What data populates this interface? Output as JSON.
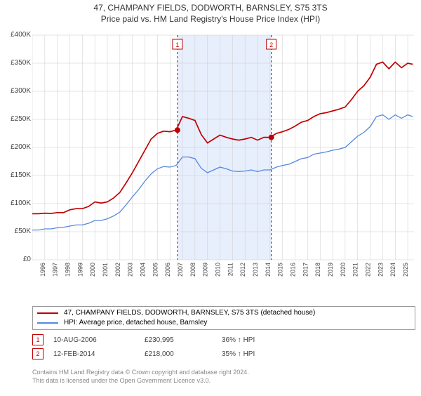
{
  "title": "47, CHAMPANY FIELDS, DODWORTH, BARNSLEY, S75 3TS",
  "subtitle": "Price paid vs. HM Land Registry's House Price Index (HPI)",
  "chart": {
    "type": "line",
    "background_color": "#ffffff",
    "grid_color": "#cccccc",
    "axis_color": "#666666",
    "xlim": [
      1995,
      2025.5
    ],
    "ylim": [
      0,
      400000
    ],
    "ytick_step": 50000,
    "ytick_labels": [
      "£0",
      "£50K",
      "£100K",
      "£150K",
      "£200K",
      "£250K",
      "£300K",
      "£350K",
      "£400K"
    ],
    "xtick_years": [
      1995,
      1996,
      1997,
      1998,
      1999,
      2000,
      2001,
      2002,
      2003,
      2004,
      2005,
      2006,
      2007,
      2008,
      2009,
      2010,
      2011,
      2012,
      2013,
      2014,
      2015,
      2016,
      2017,
      2018,
      2019,
      2020,
      2021,
      2022,
      2023,
      2024,
      2025
    ],
    "highlight_band": {
      "start": 2006.6,
      "end": 2014.1,
      "color": "#e7eefc"
    },
    "marker_lines": [
      {
        "x": 2006.6,
        "label": "1",
        "color": "#c00000"
      },
      {
        "x": 2014.1,
        "label": "2",
        "color": "#c00000"
      }
    ],
    "series": [
      {
        "name": "property",
        "color": "#c00000",
        "width": 1.7,
        "points": [
          [
            1995,
            82000
          ],
          [
            1995.5,
            82000
          ],
          [
            1996,
            83000
          ],
          [
            1996.5,
            82500
          ],
          [
            1997,
            84000
          ],
          [
            1997.5,
            84000
          ],
          [
            1998,
            89000
          ],
          [
            1998.5,
            91000
          ],
          [
            1999,
            91000
          ],
          [
            1999.5,
            95000
          ],
          [
            2000,
            103000
          ],
          [
            2000.5,
            101000
          ],
          [
            2001,
            103000
          ],
          [
            2001.5,
            110000
          ],
          [
            2002,
            120000
          ],
          [
            2002.5,
            137000
          ],
          [
            2003,
            155000
          ],
          [
            2003.5,
            175000
          ],
          [
            2004,
            195000
          ],
          [
            2004.5,
            215000
          ],
          [
            2005,
            225000
          ],
          [
            2005.5,
            229000
          ],
          [
            2006,
            228000
          ],
          [
            2006.5,
            231000
          ],
          [
            2007,
            255000
          ],
          [
            2007.5,
            252000
          ],
          [
            2008,
            248000
          ],
          [
            2008.5,
            223000
          ],
          [
            2009,
            208000
          ],
          [
            2009.5,
            215000
          ],
          [
            2010,
            222000
          ],
          [
            2010.5,
            218000
          ],
          [
            2011,
            215000
          ],
          [
            2011.5,
            213000
          ],
          [
            2012,
            215000
          ],
          [
            2012.5,
            218000
          ],
          [
            2013,
            213000
          ],
          [
            2013.5,
            218000
          ],
          [
            2014,
            218000
          ],
          [
            2014.5,
            225000
          ],
          [
            2015,
            228000
          ],
          [
            2015.5,
            232000
          ],
          [
            2016,
            238000
          ],
          [
            2016.5,
            245000
          ],
          [
            2017,
            248000
          ],
          [
            2017.5,
            255000
          ],
          [
            2018,
            260000
          ],
          [
            2018.5,
            262000
          ],
          [
            2019,
            265000
          ],
          [
            2019.5,
            268000
          ],
          [
            2020,
            272000
          ],
          [
            2020.5,
            285000
          ],
          [
            2021,
            300000
          ],
          [
            2021.5,
            310000
          ],
          [
            2022,
            325000
          ],
          [
            2022.5,
            348000
          ],
          [
            2023,
            352000
          ],
          [
            2023.5,
            340000
          ],
          [
            2024,
            352000
          ],
          [
            2024.5,
            342000
          ],
          [
            2025,
            350000
          ],
          [
            2025.4,
            348000
          ]
        ]
      },
      {
        "name": "hpi",
        "color": "#5588dd",
        "width": 1.3,
        "points": [
          [
            1995,
            53000
          ],
          [
            1995.5,
            53000
          ],
          [
            1996,
            55000
          ],
          [
            1996.5,
            55000
          ],
          [
            1997,
            57000
          ],
          [
            1997.5,
            58000
          ],
          [
            1998,
            60000
          ],
          [
            1998.5,
            62000
          ],
          [
            1999,
            62000
          ],
          [
            1999.5,
            65000
          ],
          [
            2000,
            70000
          ],
          [
            2000.5,
            70000
          ],
          [
            2001,
            73000
          ],
          [
            2001.5,
            78000
          ],
          [
            2002,
            85000
          ],
          [
            2002.5,
            98000
          ],
          [
            2003,
            112000
          ],
          [
            2003.5,
            125000
          ],
          [
            2004,
            140000
          ],
          [
            2004.5,
            153000
          ],
          [
            2005,
            162000
          ],
          [
            2005.5,
            166000
          ],
          [
            2006,
            165000
          ],
          [
            2006.5,
            168000
          ],
          [
            2007,
            183000
          ],
          [
            2007.5,
            183000
          ],
          [
            2008,
            180000
          ],
          [
            2008.5,
            163000
          ],
          [
            2009,
            155000
          ],
          [
            2009.5,
            160000
          ],
          [
            2010,
            165000
          ],
          [
            2010.5,
            162000
          ],
          [
            2011,
            158000
          ],
          [
            2011.5,
            157000
          ],
          [
            2012,
            158000
          ],
          [
            2012.5,
            160000
          ],
          [
            2013,
            157000
          ],
          [
            2013.5,
            160000
          ],
          [
            2014,
            160000
          ],
          [
            2014.5,
            165000
          ],
          [
            2015,
            168000
          ],
          [
            2015.5,
            170000
          ],
          [
            2016,
            175000
          ],
          [
            2016.5,
            180000
          ],
          [
            2017,
            182000
          ],
          [
            2017.5,
            188000
          ],
          [
            2018,
            190000
          ],
          [
            2018.5,
            192000
          ],
          [
            2019,
            195000
          ],
          [
            2019.5,
            197000
          ],
          [
            2020,
            200000
          ],
          [
            2020.5,
            210000
          ],
          [
            2021,
            220000
          ],
          [
            2021.5,
            227000
          ],
          [
            2022,
            237000
          ],
          [
            2022.5,
            255000
          ],
          [
            2023,
            258000
          ],
          [
            2023.5,
            250000
          ],
          [
            2024,
            258000
          ],
          [
            2024.5,
            252000
          ],
          [
            2025,
            258000
          ],
          [
            2025.4,
            255000
          ]
        ]
      }
    ],
    "sale_markers": [
      {
        "x": 2006.6,
        "y": 230995,
        "color": "#c00000"
      },
      {
        "x": 2014.1,
        "y": 218000,
        "color": "#c00000"
      }
    ]
  },
  "legend": {
    "items": [
      {
        "color": "#c00000",
        "label": "47, CHAMPANY FIELDS, DODWORTH, BARNSLEY, S75 3TS (detached house)"
      },
      {
        "color": "#5588dd",
        "label": "HPI: Average price, detached house, Barnsley"
      }
    ]
  },
  "markers": [
    {
      "num": "1",
      "date": "10-AUG-2006",
      "price": "£230,995",
      "pct": "36% ↑ HPI"
    },
    {
      "num": "2",
      "date": "12-FEB-2014",
      "price": "£218,000",
      "pct": "35% ↑ HPI"
    }
  ],
  "footer": {
    "line1": "Contains HM Land Registry data © Crown copyright and database right 2024.",
    "line2": "This data is licensed under the Open Government Licence v3.0."
  }
}
